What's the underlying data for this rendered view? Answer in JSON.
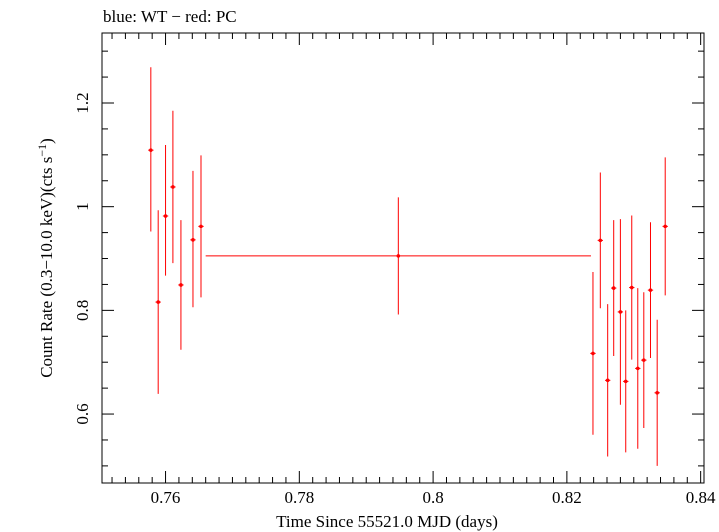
{
  "chart_data": {
    "type": "scatter",
    "title": "blue: WT − red: PC",
    "xlabel": "Time Since 55521.0 MJD (days)",
    "ylabel": "Count Rate (0.3−10.0 keV)(cts s⁻¹)",
    "xlim": [
      0.7505,
      0.8405
    ],
    "ylim": [
      0.467,
      1.335
    ],
    "xticks": [
      0.76,
      0.78,
      0.8,
      0.82,
      0.84
    ],
    "xtick_labels": [
      "0.76",
      "0.78",
      "0.8",
      "0.82",
      "0.84"
    ],
    "yticks": [
      0.6,
      0.8,
      1.0,
      1.2
    ],
    "ytick_labels": [
      "0.6",
      "0.8",
      "1",
      "1.2"
    ],
    "grid": false,
    "series": [
      {
        "name": "PC",
        "color": "#ff0000",
        "points": [
          {
            "x": 0.7578,
            "y": 1.109,
            "yerr_lo": 0.157,
            "yerr_hi": 0.16,
            "xerr": 0.0004
          },
          {
            "x": 0.7589,
            "y": 0.816,
            "yerr_lo": 0.177,
            "yerr_hi": 0.177,
            "xerr": 0.0004
          },
          {
            "x": 0.76,
            "y": 0.982,
            "yerr_lo": 0.115,
            "yerr_hi": 0.137,
            "xerr": 0.0004
          },
          {
            "x": 0.7611,
            "y": 1.038,
            "yerr_lo": 0.147,
            "yerr_hi": 0.147,
            "xerr": 0.0004
          },
          {
            "x": 0.7623,
            "y": 0.849,
            "yerr_lo": 0.125,
            "yerr_hi": 0.125,
            "xerr": 0.0004
          },
          {
            "x": 0.7641,
            "y": 0.936,
            "yerr_lo": 0.13,
            "yerr_hi": 0.133,
            "xerr": 0.0004
          },
          {
            "x": 0.7653,
            "y": 0.962,
            "yerr_lo": 0.137,
            "yerr_hi": 0.137,
            "xerr": 0.0004
          },
          {
            "x": 0.7948,
            "y": 0.905,
            "yerr_lo": 0.113,
            "yerr_hi": 0.113,
            "xerr": 0.0288
          },
          {
            "x": 0.8239,
            "y": 0.717,
            "yerr_lo": 0.157,
            "yerr_hi": 0.157,
            "xerr": 0.0004
          },
          {
            "x": 0.825,
            "y": 0.935,
            "yerr_lo": 0.131,
            "yerr_hi": 0.131,
            "xerr": 0.0004
          },
          {
            "x": 0.8261,
            "y": 0.665,
            "yerr_lo": 0.147,
            "yerr_hi": 0.147,
            "xerr": 0.0004
          },
          {
            "x": 0.827,
            "y": 0.843,
            "yerr_lo": 0.131,
            "yerr_hi": 0.131,
            "xerr": 0.0004
          },
          {
            "x": 0.828,
            "y": 0.797,
            "yerr_lo": 0.179,
            "yerr_hi": 0.179,
            "xerr": 0.0004
          },
          {
            "x": 0.8288,
            "y": 0.663,
            "yerr_lo": 0.137,
            "yerr_hi": 0.137,
            "xerr": 0.0004
          },
          {
            "x": 0.8297,
            "y": 0.844,
            "yerr_lo": 0.139,
            "yerr_hi": 0.139,
            "xerr": 0.0004
          },
          {
            "x": 0.8306,
            "y": 0.688,
            "yerr_lo": 0.155,
            "yerr_hi": 0.155,
            "xerr": 0.0004
          },
          {
            "x": 0.8315,
            "y": 0.704,
            "yerr_lo": 0.131,
            "yerr_hi": 0.131,
            "xerr": 0.0004
          },
          {
            "x": 0.8325,
            "y": 0.839,
            "yerr_lo": 0.131,
            "yerr_hi": 0.131,
            "xerr": 0.0004
          },
          {
            "x": 0.8335,
            "y": 0.641,
            "yerr_lo": 0.141,
            "yerr_hi": 0.141,
            "xerr": 0.0004
          },
          {
            "x": 0.8347,
            "y": 0.962,
            "yerr_lo": 0.133,
            "yerr_hi": 0.133,
            "xerr": 0.0004
          }
        ]
      }
    ]
  }
}
